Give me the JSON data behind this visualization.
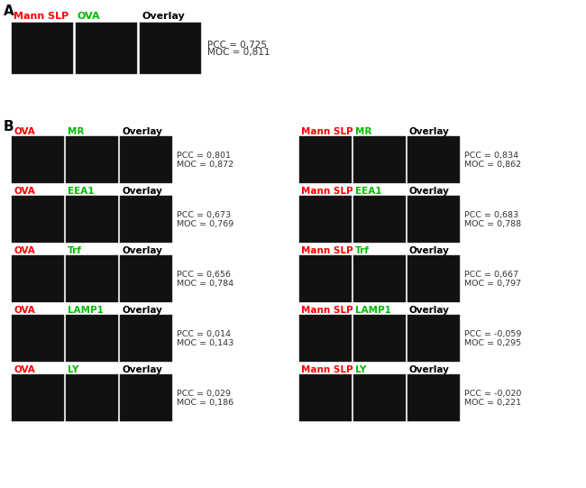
{
  "background_color": "#ffffff",
  "panel_A": {
    "label": "A",
    "labels": [
      "Mann SLP",
      "OVA",
      "Overlay"
    ],
    "label_colors": [
      "#ff0000",
      "#00bb00",
      "#000000"
    ],
    "label_bold": [
      true,
      true,
      true
    ],
    "pcc": "PCC = 0,725",
    "moc": "MOC = 0,811"
  },
  "panel_B": {
    "label": "B",
    "left_rows": [
      {
        "labels": [
          "OVA",
          "MR",
          "Overlay"
        ],
        "label_colors": [
          "#ff0000",
          "#00bb00",
          "#000000"
        ],
        "pcc": "PCC = 0,801",
        "moc": "MOC = 0,872"
      },
      {
        "labels": [
          "OVA",
          "EEA1",
          "Overlay"
        ],
        "label_colors": [
          "#ff0000",
          "#00bb00",
          "#000000"
        ],
        "pcc": "PCC = 0,673",
        "moc": "MOC = 0,769"
      },
      {
        "labels": [
          "OVA",
          "Trf",
          "Overlay"
        ],
        "label_colors": [
          "#ff0000",
          "#00bb00",
          "#000000"
        ],
        "pcc": "PCC = 0,656",
        "moc": "MOC = 0,784"
      },
      {
        "labels": [
          "OVA",
          "LAMP1",
          "Overlay"
        ],
        "label_colors": [
          "#ff0000",
          "#00bb00",
          "#000000"
        ],
        "pcc": "PCC = 0,014",
        "moc": "MOC = 0,143"
      },
      {
        "labels": [
          "OVA",
          "LY",
          "Overlay"
        ],
        "label_colors": [
          "#ff0000",
          "#00bb00",
          "#000000"
        ],
        "pcc": "PCC = 0,029",
        "moc": "MOC = 0,186"
      }
    ],
    "right_rows": [
      {
        "labels": [
          "Mann SLP",
          "MR",
          "Overlay"
        ],
        "label_colors": [
          "#ff0000",
          "#00bb00",
          "#000000"
        ],
        "pcc": "PCC = 0,834",
        "moc": "MOC = 0,862"
      },
      {
        "labels": [
          "Mann SLP",
          "EEA1",
          "Overlay"
        ],
        "label_colors": [
          "#ff0000",
          "#00bb00",
          "#000000"
        ],
        "pcc": "PCC = 0,683",
        "moc": "MOC = 0,788"
      },
      {
        "labels": [
          "Mann SLP",
          "Trf",
          "Overlay"
        ],
        "label_colors": [
          "#ff0000",
          "#00bb00",
          "#000000"
        ],
        "pcc": "PCC = 0,667",
        "moc": "MOC = 0,797"
      },
      {
        "labels": [
          "Mann SLP",
          "LAMP1",
          "Overlay"
        ],
        "label_colors": [
          "#ff0000",
          "#00bb00",
          "#000000"
        ],
        "pcc": "PCC = -0,059",
        "moc": "MOC = 0,295"
      },
      {
        "labels": [
          "Mann SLP",
          "LY",
          "Overlay"
        ],
        "label_colors": [
          "#ff0000",
          "#00bb00",
          "#000000"
        ],
        "pcc": "PCC = -0,020",
        "moc": "MOC = 0,221"
      }
    ]
  }
}
